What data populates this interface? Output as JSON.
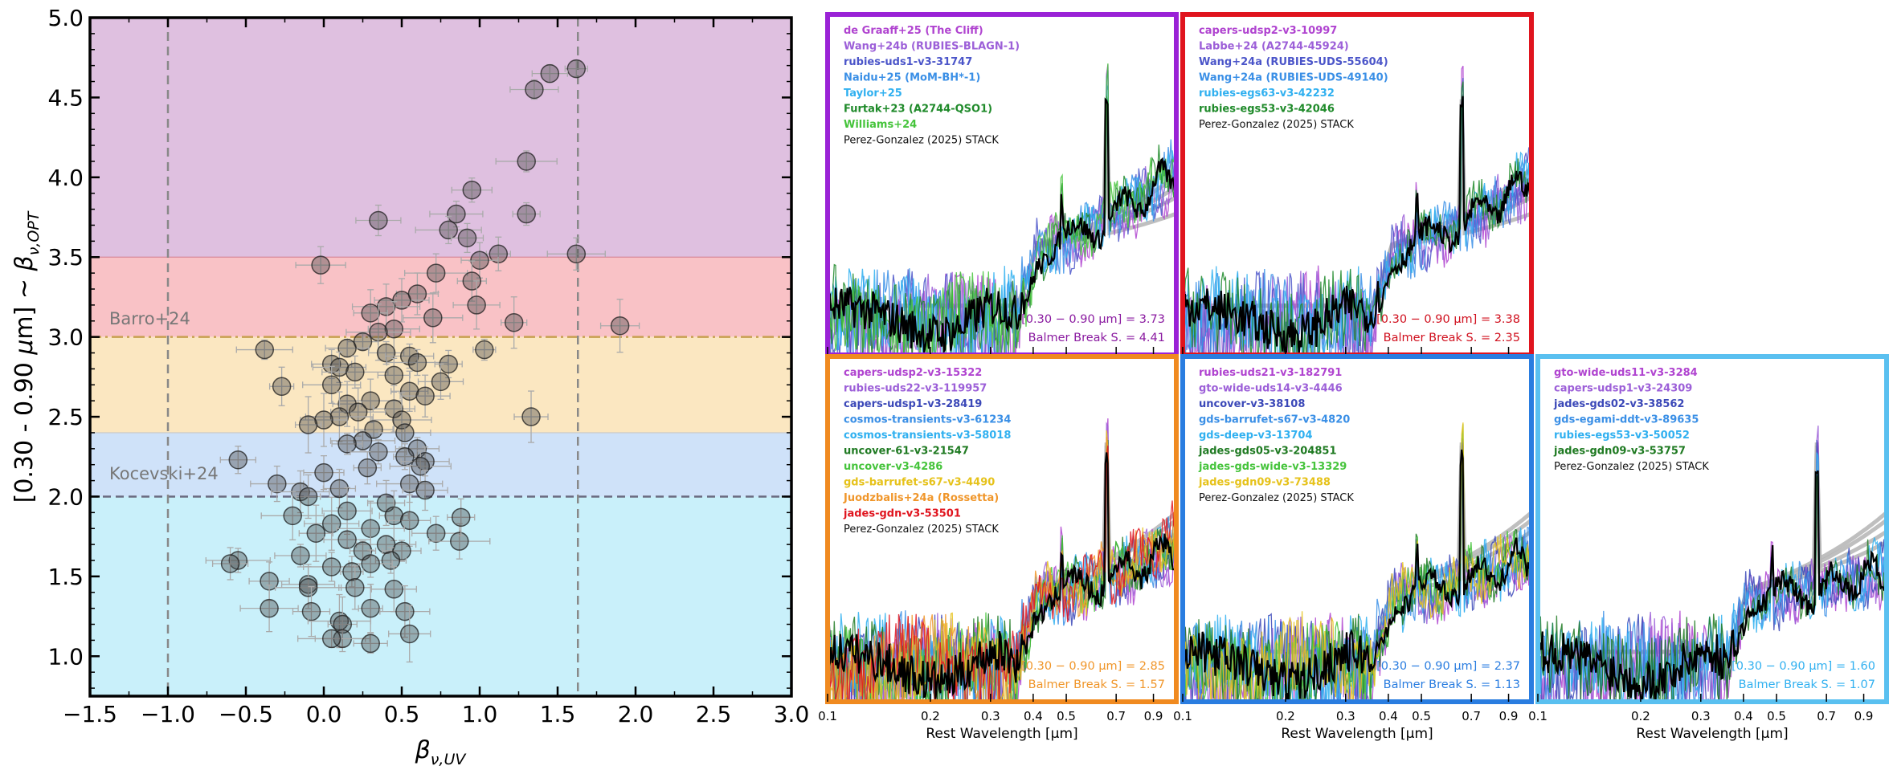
{
  "chart_data": [
    {
      "type": "scatter",
      "panel": "left",
      "xlabel": "β_ν,UV",
      "ylabel": "[0.30 - 0.90 μm] ~ β_ν,OPT",
      "xlim": [
        -1.5,
        3.0
      ],
      "ylim": [
        0.75,
        5.0
      ],
      "xticks": [
        "−1.5",
        "−1.0",
        "−0.5",
        "0.0",
        "0.5",
        "1.0",
        "1.5",
        "2.0",
        "2.5",
        "3.0"
      ],
      "yticks": [
        "1.0",
        "1.5",
        "2.0",
        "2.5",
        "3.0",
        "3.5",
        "4.0",
        "4.5",
        "5.0"
      ],
      "bands": [
        {
          "y0": 3.5,
          "y1": 5.0,
          "color": "#dfc0e0"
        },
        {
          "y0": 3.0,
          "y1": 3.5,
          "color": "#f9c2c6"
        },
        {
          "y0": 2.4,
          "y1": 3.0,
          "color": "#fbe7c1"
        },
        {
          "y0": 2.0,
          "y1": 2.4,
          "color": "#cfe2f9"
        },
        {
          "y0": 0.75,
          "y1": 2.0,
          "color": "#c9f0fa"
        }
      ],
      "hlines": [
        {
          "y": 3.0,
          "label": "Barro+24",
          "style": "dashdot",
          "color": "#c8a050"
        },
        {
          "y": 2.0,
          "label": "Kocevski+24",
          "style": "dashed",
          "color": "#6a6a80"
        }
      ],
      "vlines": [
        -1.0,
        1.63
      ],
      "points": [
        [
          1.62,
          4.68
        ],
        [
          1.45,
          4.65
        ],
        [
          1.35,
          4.55
        ],
        [
          1.3,
          4.1
        ],
        [
          1.3,
          3.77
        ],
        [
          0.95,
          3.92
        ],
        [
          0.85,
          3.77
        ],
        [
          0.8,
          3.67
        ],
        [
          0.92,
          3.62
        ],
        [
          0.35,
          3.73
        ],
        [
          1.62,
          3.52
        ],
        [
          1.12,
          3.52
        ],
        [
          1.0,
          3.48
        ],
        [
          -0.02,
          3.45
        ],
        [
          0.72,
          3.4
        ],
        [
          0.95,
          3.35
        ],
        [
          0.6,
          3.27
        ],
        [
          0.5,
          3.23
        ],
        [
          0.4,
          3.19
        ],
        [
          0.3,
          3.15
        ],
        [
          0.98,
          3.2
        ],
        [
          0.7,
          3.12
        ],
        [
          1.22,
          3.09
        ],
        [
          1.9,
          3.07
        ],
        [
          0.45,
          3.05
        ],
        [
          0.35,
          3.03
        ],
        [
          0.25,
          2.97
        ],
        [
          0.15,
          2.93
        ],
        [
          -0.38,
          2.92
        ],
        [
          1.03,
          2.92
        ],
        [
          0.4,
          2.9
        ],
        [
          0.55,
          2.88
        ],
        [
          0.6,
          2.84
        ],
        [
          0.8,
          2.83
        ],
        [
          0.05,
          2.83
        ],
        [
          0.1,
          2.81
        ],
        [
          0.2,
          2.78
        ],
        [
          0.45,
          2.76
        ],
        [
          0.75,
          2.72
        ],
        [
          0.05,
          2.7
        ],
        [
          -0.27,
          2.69
        ],
        [
          0.55,
          2.66
        ],
        [
          0.65,
          2.63
        ],
        [
          0.3,
          2.6
        ],
        [
          0.15,
          2.58
        ],
        [
          0.45,
          2.55
        ],
        [
          0.22,
          2.53
        ],
        [
          0.1,
          2.5
        ],
        [
          1.33,
          2.5
        ],
        [
          0.0,
          2.48
        ],
        [
          0.5,
          2.48
        ],
        [
          -0.1,
          2.45
        ],
        [
          0.32,
          2.42
        ],
        [
          0.52,
          2.4
        ],
        [
          0.25,
          2.35
        ],
        [
          0.15,
          2.33
        ],
        [
          0.6,
          2.3
        ],
        [
          0.35,
          2.28
        ],
        [
          0.52,
          2.25
        ],
        [
          -0.55,
          2.23
        ],
        [
          0.65,
          2.22
        ],
        [
          0.62,
          2.19
        ],
        [
          0.28,
          2.18
        ],
        [
          0.0,
          2.15
        ],
        [
          -0.3,
          2.08
        ],
        [
          0.55,
          2.08
        ],
        [
          0.1,
          2.05
        ],
        [
          0.65,
          2.04
        ],
        [
          -0.15,
          2.03
        ],
        [
          -0.1,
          2.0
        ],
        [
          0.4,
          1.96
        ],
        [
          0.15,
          1.91
        ],
        [
          -0.2,
          1.88
        ],
        [
          0.45,
          1.88
        ],
        [
          0.55,
          1.85
        ],
        [
          0.05,
          1.83
        ],
        [
          0.3,
          1.8
        ],
        [
          -0.05,
          1.77
        ],
        [
          0.15,
          1.73
        ],
        [
          0.4,
          1.7
        ],
        [
          0.25,
          1.66
        ],
        [
          0.5,
          1.66
        ],
        [
          -0.15,
          1.63
        ],
        [
          -0.55,
          1.6
        ],
        [
          0.43,
          1.6
        ],
        [
          0.3,
          1.58
        ],
        [
          0.05,
          1.56
        ],
        [
          0.18,
          1.53
        ],
        [
          -0.6,
          1.58
        ],
        [
          0.72,
          1.77
        ],
        [
          0.87,
          1.72
        ],
        [
          0.88,
          1.87
        ],
        [
          -0.35,
          1.47
        ],
        [
          -0.1,
          1.45
        ],
        [
          -0.1,
          1.43
        ],
        [
          0.2,
          1.43
        ],
        [
          0.45,
          1.42
        ],
        [
          -0.35,
          1.3
        ],
        [
          0.3,
          1.3
        ],
        [
          -0.08,
          1.28
        ],
        [
          0.52,
          1.28
        ],
        [
          0.1,
          1.22
        ],
        [
          0.12,
          1.2
        ],
        [
          0.55,
          1.14
        ],
        [
          0.12,
          1.11
        ],
        [
          0.05,
          1.11
        ],
        [
          0.3,
          1.08
        ]
      ]
    },
    {
      "type": "line",
      "panel": "spectra",
      "xlabel": "Rest Wavelength [μm]",
      "xlim_um": [
        0.1,
        1.05
      ],
      "xticks": [
        "0.1",
        "0.2",
        "0.3",
        "0.4",
        "0.5",
        "0.7",
        "0.9"
      ],
      "xtick_values": [
        0.1,
        0.2,
        0.3,
        0.4,
        0.5,
        0.7,
        0.9
      ],
      "subplots": [
        {
          "frame_color": "#9a22d6",
          "legend": [
            {
              "text": "de Graaff+25 (The Cliff)",
              "color": "#b044d0"
            },
            {
              "text": "Wang+24b (RUBIES-BLAGN-1)",
              "color": "#9c5fd8"
            },
            {
              "text": "rubies-uds1-v3-31747",
              "color": "#4b55c9"
            },
            {
              "text": "Naidu+25 (MoM-BH*-1)",
              "color": "#3a8fe6"
            },
            {
              "text": "Taylor+25",
              "color": "#30b0f0"
            },
            {
              "text": "Furtak+23 (A2744-QSO1)",
              "color": "#1f8a2a"
            },
            {
              "text": "Williams+24",
              "color": "#46c43c"
            },
            {
              "text": "Perez-Gonzalez (2025) STACK",
              "color": "#111111"
            }
          ],
          "ratio_text": "[0.30 − 0.90 μm] = 3.73",
          "balmer_text": "Balmer Break S. = 4.41",
          "text_color": "#8a1aa0",
          "slope": 3.73,
          "break": 0.9,
          "series_colors": [
            "#b044d0",
            "#9c5fd8",
            "#4b55c9",
            "#3a8fe6",
            "#30b0f0",
            "#1f8a2a",
            "#46c43c"
          ]
        },
        {
          "frame_color": "#e0141e",
          "legend": [
            {
              "text": "capers-udsp2-v3-10997",
              "color": "#b044d0"
            },
            {
              "text": "Labbe+24 (A2744-45924)",
              "color": "#9c5fd8"
            },
            {
              "text": "Wang+24a (RUBIES-UDS-55604)",
              "color": "#4b55c9"
            },
            {
              "text": "Wang+24a (RUBIES-UDS-49140)",
              "color": "#3a8fe6"
            },
            {
              "text": "rubies-egs63-v3-42232",
              "color": "#30b0f0"
            },
            {
              "text": "rubies-egs53-v3-42046",
              "color": "#1f8a2a"
            },
            {
              "text": "Perez-Gonzalez (2025) STACK",
              "color": "#111111"
            }
          ],
          "ratio_text": "[0.30 − 0.90 μm] = 3.38",
          "balmer_text": "Balmer Break S. = 2.35",
          "text_color": "#d0101e",
          "slope": 3.38,
          "break": 0.7,
          "series_colors": [
            "#b044d0",
            "#9c5fd8",
            "#4b55c9",
            "#3a8fe6",
            "#30b0f0",
            "#1f8a2a"
          ]
        },
        {
          "frame_color": "#f08a20",
          "legend": [
            {
              "text": "capers-udsp2-v3-15322",
              "color": "#b044d0"
            },
            {
              "text": "rubies-uds22-v3-119957",
              "color": "#9c5fd8"
            },
            {
              "text": "capers-udsp1-v3-28419",
              "color": "#3b48b8"
            },
            {
              "text": "cosmos-transients-v3-61234",
              "color": "#3a8fe6"
            },
            {
              "text": "cosmos-transients-v3-58018",
              "color": "#30b0f0"
            },
            {
              "text": "uncover-61-v3-21547",
              "color": "#1f7a22"
            },
            {
              "text": "uncover-v3-4286",
              "color": "#46c43c"
            },
            {
              "text": "gds-barrufet-s67-v3-4490",
              "color": "#e6c21a"
            },
            {
              "text": "Juodzbalis+24a (Rossetta)",
              "color": "#f0962a"
            },
            {
              "text": "jades-gdn-v3-53501",
              "color": "#e0141e"
            },
            {
              "text": "Perez-Gonzalez (2025) STACK",
              "color": "#111111"
            }
          ],
          "ratio_text": "[0.30 − 0.90 μm] = 2.85",
          "balmer_text": "Balmer Break S. = 1.57",
          "text_color": "#f0962a",
          "slope": 2.85,
          "break": 0.5,
          "series_colors": [
            "#b044d0",
            "#9c5fd8",
            "#3b48b8",
            "#3a8fe6",
            "#30b0f0",
            "#1f7a22",
            "#46c43c",
            "#e6c21a",
            "#f0962a",
            "#e0141e"
          ]
        },
        {
          "frame_color": "#2a7de0",
          "legend": [
            {
              "text": "rubies-uds21-v3-182791",
              "color": "#b044d0"
            },
            {
              "text": "gto-wide-uds14-v3-4446",
              "color": "#9c5fd8"
            },
            {
              "text": "uncover-v3-38108",
              "color": "#3b48b8"
            },
            {
              "text": "gds-barrufet-s67-v3-4820",
              "color": "#3a8fe6"
            },
            {
              "text": "gds-deep-v3-13704",
              "color": "#30b0f0"
            },
            {
              "text": "jades-gds05-v3-204851",
              "color": "#1f7a22"
            },
            {
              "text": "jades-gds-wide-v3-13329",
              "color": "#46c43c"
            },
            {
              "text": "jades-gdn09-v3-73488",
              "color": "#e6c21a"
            },
            {
              "text": "Perez-Gonzalez (2025) STACK",
              "color": "#111111"
            }
          ],
          "ratio_text": "[0.30 − 0.90 μm] = 2.37",
          "balmer_text": "Balmer Break S. = 1.13",
          "text_color": "#2a7de0",
          "slope": 2.37,
          "break": 0.3,
          "series_colors": [
            "#b044d0",
            "#9c5fd8",
            "#3b48b8",
            "#3a8fe6",
            "#30b0f0",
            "#1f7a22",
            "#46c43c",
            "#e6c21a"
          ]
        },
        {
          "frame_color": "#5ac0f0",
          "legend": [
            {
              "text": "gto-wide-uds11-v3-3284",
              "color": "#b044d0"
            },
            {
              "text": "capers-udsp1-v3-24309",
              "color": "#9c5fd8"
            },
            {
              "text": "jades-gds02-v3-38562",
              "color": "#3b48b8"
            },
            {
              "text": "gds-egami-ddt-v3-89635",
              "color": "#3a8fe6"
            },
            {
              "text": "rubies-egs53-v3-50052",
              "color": "#30b0f0"
            },
            {
              "text": "jades-gdn09-v3-53757",
              "color": "#1f7a22"
            },
            {
              "text": "Perez-Gonzalez (2025) STACK",
              "color": "#111111"
            }
          ],
          "ratio_text": "[0.30 − 0.90 μm] = 1.60",
          "balmer_text": "Balmer Break S. = 1.07",
          "text_color": "#30b0f0",
          "slope": 1.6,
          "break": 0.2,
          "series_colors": [
            "#b044d0",
            "#9c5fd8",
            "#3b48b8",
            "#3a8fe6",
            "#30b0f0",
            "#1f7a22"
          ]
        }
      ]
    }
  ]
}
